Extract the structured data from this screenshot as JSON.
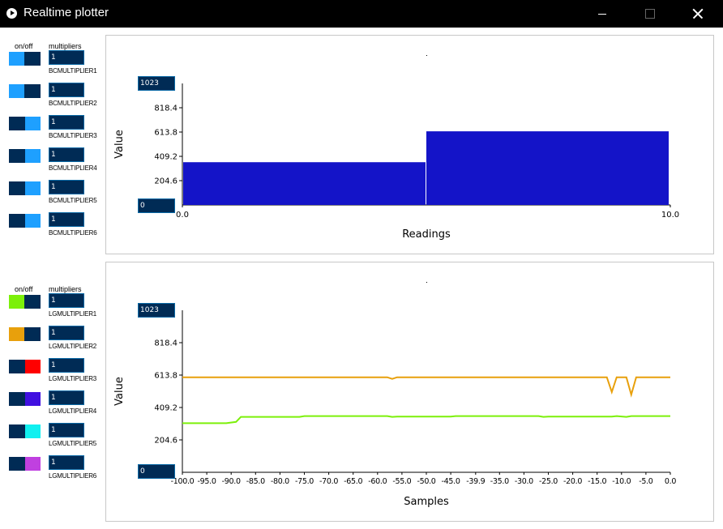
{
  "window": {
    "title": "Realtime plotter"
  },
  "bar_controls": {
    "onoff_label": "on/off",
    "multipliers_label": "multipliers",
    "items": [
      {
        "label": "BCMULTIPLIER1",
        "value": "1",
        "on": true,
        "color": "#1ea0ff"
      },
      {
        "label": "BCMULTIPLIER2",
        "value": "1",
        "on": true,
        "color": "#1ea0ff"
      },
      {
        "label": "BCMULTIPLIER3",
        "value": "1",
        "on": false,
        "color": "#1ea0ff"
      },
      {
        "label": "BCMULTIPLIER4",
        "value": "1",
        "on": false,
        "color": "#1ea0ff"
      },
      {
        "label": "BCMULTIPLIER5",
        "value": "1",
        "on": false,
        "color": "#1ea0ff"
      },
      {
        "label": "BCMULTIPLIER6",
        "value": "1",
        "on": false,
        "color": "#1ea0ff"
      }
    ]
  },
  "line_controls": {
    "onoff_label": "on/off",
    "multipliers_label": "multipliers",
    "items": [
      {
        "label": "LGMULTIPLIER1",
        "value": "1",
        "on": true,
        "color": "#7cf00a"
      },
      {
        "label": "LGMULTIPLIER2",
        "value": "1",
        "on": true,
        "color": "#e8a00c"
      },
      {
        "label": "LGMULTIPLIER3",
        "value": "1",
        "on": false,
        "color": "#ff0000"
      },
      {
        "label": "LGMULTIPLIER4",
        "value": "1",
        "on": false,
        "color": "#4010e0"
      },
      {
        "label": "LGMULTIPLIER5",
        "value": "1",
        "on": false,
        "color": "#10f0f0"
      },
      {
        "label": "LGMULTIPLIER6",
        "value": "1",
        "on": false,
        "color": "#c040e0"
      }
    ]
  },
  "chart_data": [
    {
      "type": "bar",
      "title": "",
      "xlabel": "Readings",
      "ylabel": "Value",
      "ylim": [
        0,
        1023
      ],
      "xlim": [
        0,
        10
      ],
      "x_ticks": [
        "0.0",
        "10.0"
      ],
      "y_ticks": [
        "204.6",
        "409.2",
        "613.8",
        "818.4"
      ],
      "range_max": "1023",
      "range_min": "0",
      "bar_color": "#1414c8",
      "values": [
        360,
        620
      ],
      "grid": false
    },
    {
      "type": "line",
      "title": "",
      "xlabel": "Samples",
      "ylabel": "Value",
      "ylim": [
        0,
        1023
      ],
      "xlim": [
        -100,
        0
      ],
      "x_ticks": [
        "-100.0",
        "-95.0",
        "-90.0",
        "-85.0",
        "-80.0",
        "-75.0",
        "-70.0",
        "-65.0",
        "-60.0",
        "-55.0",
        "-50.0",
        "-45.0",
        "-39.9",
        "-35.0",
        "-30.0",
        "-25.0",
        "-20.0",
        "-15.0",
        "-10.0",
        "-5.0",
        "0.0"
      ],
      "y_ticks": [
        "204.6",
        "409.2",
        "613.8",
        "818.4"
      ],
      "range_max": "1023",
      "range_min": "0",
      "grid": false,
      "series": [
        {
          "color": "#e8a00c",
          "x": [
            -100,
            -58,
            -57,
            -56,
            -13,
            -12,
            -11,
            -9,
            -8,
            -7,
            0
          ],
          "y": [
            600,
            600,
            590,
            600,
            600,
            507,
            600,
            600,
            490,
            600,
            600
          ]
        },
        {
          "color": "#7cf00a",
          "x": [
            -100,
            -91,
            -89,
            -88,
            -76,
            -75,
            -58,
            -57,
            -56,
            -45,
            -44,
            -27,
            -26,
            -25,
            -12,
            -11,
            -9,
            -8,
            0
          ],
          "y": [
            310,
            310,
            318,
            350,
            350,
            355,
            355,
            350,
            352,
            352,
            355,
            355,
            350,
            352,
            352,
            355,
            350,
            355,
            355
          ]
        }
      ]
    }
  ]
}
